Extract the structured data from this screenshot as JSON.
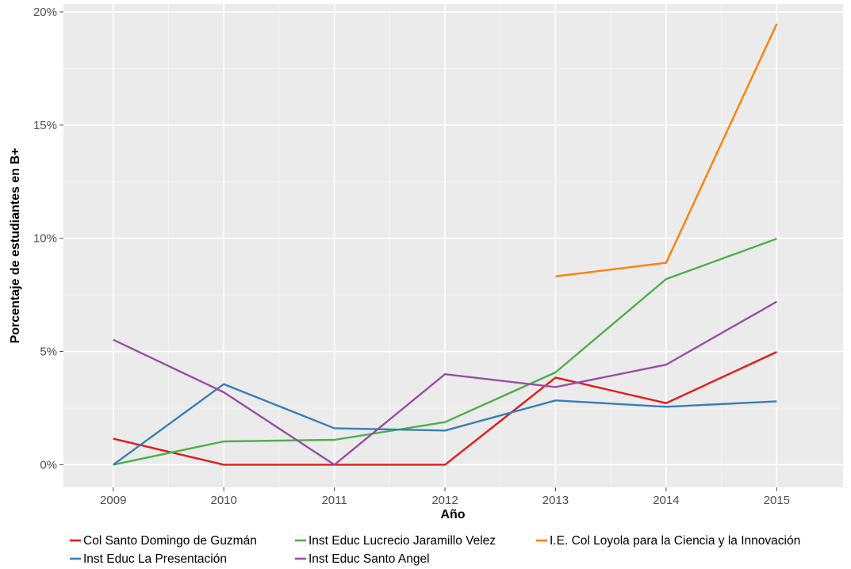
{
  "chart_data": {
    "type": "line",
    "title": "",
    "xlabel": "Año",
    "ylabel": "Porcentaje de estudiantes en B+",
    "x": [
      2009,
      2010,
      2011,
      2012,
      2013,
      2014,
      2015
    ],
    "x_tick_labels": [
      "2009",
      "2010",
      "2011",
      "2012",
      "2013",
      "2014",
      "2015"
    ],
    "xlim": [
      2008.55,
      2015.6
    ],
    "ylim": [
      -0.01,
      0.2035
    ],
    "y_ticks": [
      0,
      0.05,
      0.1,
      0.15,
      0.2
    ],
    "y_tick_labels": [
      "0%",
      "5%",
      "10%",
      "15%",
      "20%"
    ],
    "grid": true,
    "background": "#ebebeb",
    "legend_position": "bottom",
    "series": [
      {
        "name": "Col Santo Domingo de Guzmán",
        "color": "#e41a1c",
        "values": [
          0.0115,
          0.0,
          0.0,
          0.0,
          0.0385,
          0.0272,
          0.0498
        ]
      },
      {
        "name": "Inst Educ Lucrecio Jaramillo Velez",
        "color": "#4daf4a",
        "values": [
          0.0,
          0.0103,
          0.011,
          0.0188,
          0.0408,
          0.082,
          0.0998
        ]
      },
      {
        "name": "I.E. Col Loyola para la Ciencia y la Innovación",
        "color": "#ff7f00",
        "values": [
          null,
          null,
          null,
          null,
          0.0832,
          0.0892,
          0.1947
        ]
      },
      {
        "name": "Inst Educ La Presentación",
        "color": "#377eb8",
        "values": [
          0.0,
          0.0356,
          0.0161,
          0.0151,
          0.0284,
          0.0256,
          0.028
        ]
      },
      {
        "name": "Inst Educ Santo Angel",
        "color": "#984ea3",
        "values": [
          0.0552,
          0.032,
          0.0,
          0.04,
          0.0343,
          0.0442,
          0.072
        ]
      }
    ]
  }
}
